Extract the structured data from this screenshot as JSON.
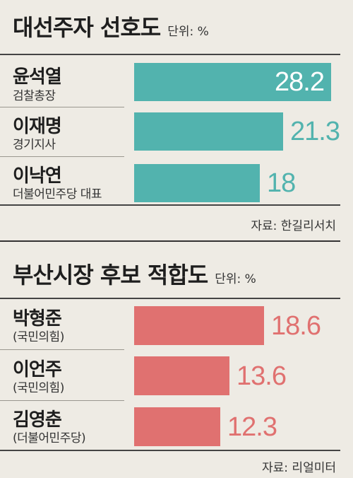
{
  "chart_data": [
    {
      "type": "bar",
      "orientation": "horizontal",
      "title": "대선주자 선호도",
      "unit": "단위: %",
      "categories": [
        "윤석열",
        "이재명",
        "이낙연"
      ],
      "subtitles": [
        "검찰총장",
        "경기지사",
        "더불어민주당 대표"
      ],
      "values": [
        28.2,
        21.3,
        18
      ],
      "value_labels": [
        "28.2",
        "21.3",
        "18"
      ],
      "color": "#52b3ae",
      "xlim": [
        0,
        30
      ],
      "source": "자료: 한길리서치"
    },
    {
      "type": "bar",
      "orientation": "horizontal",
      "title": "부산시장 후보 적합도",
      "unit": "단위: %",
      "categories": [
        "박형준",
        "이언주",
        "김영춘"
      ],
      "subtitles": [
        "(국민의힘)",
        "(국민의힘)",
        "(더불어민주당)"
      ],
      "values": [
        18.6,
        13.6,
        12.3
      ],
      "value_labels": [
        "18.6",
        "13.6",
        "12.3"
      ],
      "color": "#e07170",
      "xlim": [
        0,
        30
      ],
      "source": "자료: 리얼미터"
    }
  ]
}
